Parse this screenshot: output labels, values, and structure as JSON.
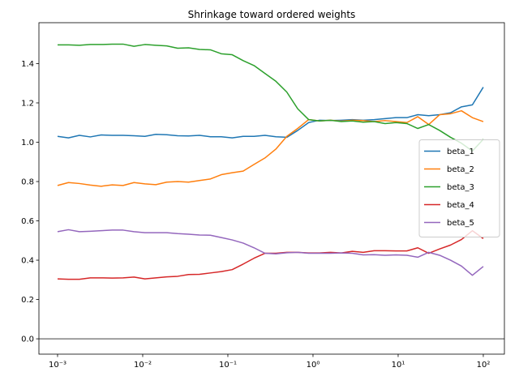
{
  "chart_data": {
    "type": "line",
    "title": "Shrinkage toward ordered weights",
    "log_x": true,
    "x": [
      0.001,
      0.001343,
      0.001804,
      0.002424,
      0.003257,
      0.004375,
      0.005878,
      0.007896,
      0.01061,
      0.01425,
      0.01914,
      0.02572,
      0.03455,
      0.04642,
      0.06236,
      0.08377,
      0.1125,
      0.1512,
      0.2031,
      0.2728,
      0.3665,
      0.4924,
      0.6615,
      0.8886,
      1.194,
      1.604,
      2.154,
      2.894,
      3.888,
      5.223,
      7.017,
      9.427,
      12.66,
      17.01,
      22.85,
      30.7,
      41.25,
      55.41,
      74.44,
      100
    ],
    "series": [
      {
        "name": "beta_1",
        "color": "#1f77b4",
        "values": [
          1.03,
          1.022,
          1.035,
          1.027,
          1.037,
          1.035,
          1.035,
          1.033,
          1.03,
          1.04,
          1.038,
          1.033,
          1.032,
          1.035,
          1.028,
          1.028,
          1.022,
          1.03,
          1.03,
          1.035,
          1.028,
          1.025,
          1.06,
          1.1,
          1.112,
          1.11,
          1.112,
          1.115,
          1.112,
          1.115,
          1.12,
          1.125,
          1.125,
          1.14,
          1.135,
          1.14,
          1.15,
          1.18,
          1.19,
          1.28
        ]
      },
      {
        "name": "beta_2",
        "color": "#ff7f0e",
        "values": [
          0.78,
          0.795,
          0.79,
          0.782,
          0.776,
          0.783,
          0.78,
          0.795,
          0.788,
          0.784,
          0.797,
          0.8,
          0.797,
          0.805,
          0.813,
          0.835,
          0.845,
          0.853,
          0.887,
          0.92,
          0.965,
          1.03,
          1.07,
          1.115,
          1.108,
          1.112,
          1.107,
          1.112,
          1.11,
          1.105,
          1.11,
          1.105,
          1.1,
          1.13,
          1.09,
          1.14,
          1.145,
          1.16,
          1.125,
          1.105
        ]
      },
      {
        "name": "beta_3",
        "color": "#2ca02c",
        "values": [
          1.495,
          1.495,
          1.493,
          1.497,
          1.497,
          1.499,
          1.499,
          1.488,
          1.497,
          1.493,
          1.49,
          1.478,
          1.48,
          1.472,
          1.47,
          1.45,
          1.445,
          1.415,
          1.39,
          1.35,
          1.31,
          1.255,
          1.17,
          1.115,
          1.108,
          1.112,
          1.105,
          1.108,
          1.102,
          1.105,
          1.095,
          1.1,
          1.095,
          1.07,
          1.09,
          1.06,
          1.025,
          0.995,
          0.955,
          1.015
        ]
      },
      {
        "name": "beta_4",
        "color": "#d62728",
        "values": [
          0.305,
          0.303,
          0.303,
          0.31,
          0.31,
          0.309,
          0.31,
          0.314,
          0.305,
          0.31,
          0.315,
          0.318,
          0.327,
          0.328,
          0.335,
          0.342,
          0.352,
          0.38,
          0.41,
          0.435,
          0.435,
          0.44,
          0.44,
          0.437,
          0.437,
          0.44,
          0.437,
          0.445,
          0.44,
          0.448,
          0.448,
          0.447,
          0.447,
          0.463,
          0.435,
          0.457,
          0.477,
          0.505,
          0.55,
          0.51
        ]
      },
      {
        "name": "beta_5",
        "color": "#9467bd",
        "values": [
          0.545,
          0.555,
          0.545,
          0.547,
          0.55,
          0.553,
          0.553,
          0.545,
          0.54,
          0.54,
          0.54,
          0.535,
          0.532,
          0.528,
          0.527,
          0.515,
          0.503,
          0.487,
          0.463,
          0.435,
          0.432,
          0.438,
          0.44,
          0.435,
          0.435,
          0.435,
          0.437,
          0.435,
          0.427,
          0.428,
          0.425,
          0.427,
          0.425,
          0.415,
          0.44,
          0.425,
          0.4,
          0.37,
          0.323,
          0.368
        ]
      }
    ],
    "xlim": [
      0.000604,
      177
    ],
    "xticks": [
      {
        "value": 0.001,
        "label": "10⁻³"
      },
      {
        "value": 0.01,
        "label": "10⁻²"
      },
      {
        "value": 0.1,
        "label": "10⁻¹"
      },
      {
        "value": 1,
        "label": "10⁰"
      },
      {
        "value": 10,
        "label": "10¹"
      },
      {
        "value": 100,
        "label": "10²"
      }
    ],
    "ylim": [
      -0.078,
      1.608
    ],
    "yticks": [
      {
        "value": 0,
        "label": "0.0"
      },
      0.2,
      0.4,
      0.6,
      0.8,
      {
        "value": 1,
        "label": "1.0"
      },
      1.2,
      1.4
    ],
    "hline": {
      "y": 0,
      "color": "#808080"
    },
    "legend": "center right",
    "grid": false
  }
}
